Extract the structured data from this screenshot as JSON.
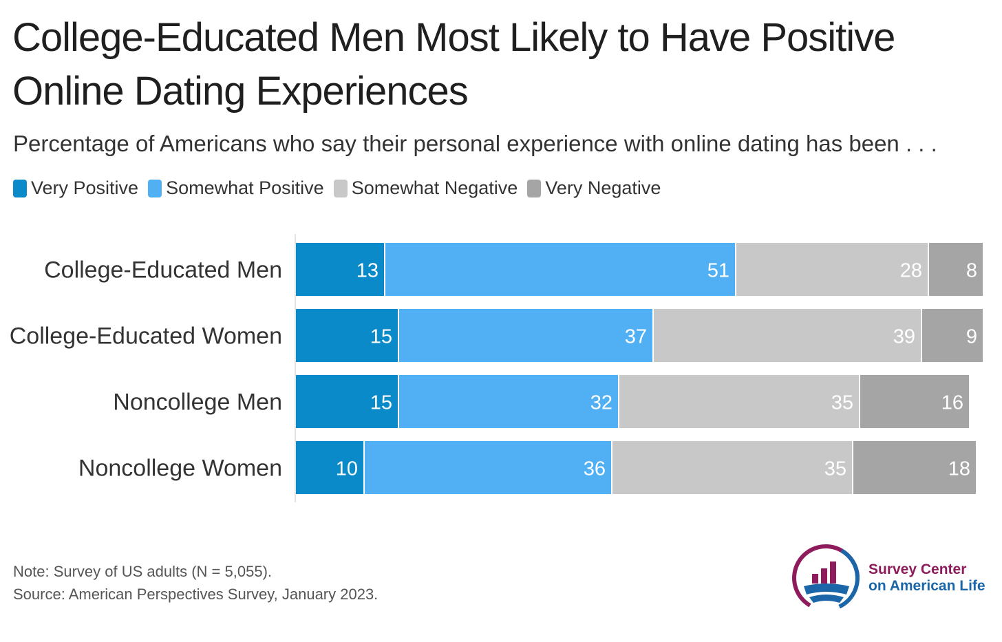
{
  "title": "College-Educated Men Most Likely to Have Positive Online Dating Experiences",
  "subtitle": "Percentage of Americans who say their personal experience with online dating has been . . .",
  "colors": {
    "very_positive": "#0a8ac9",
    "somewhat_positive": "#51b0f4",
    "somewhat_negative": "#c8c8c8",
    "very_negative": "#a5a5a5"
  },
  "chart_data": {
    "type": "bar",
    "orientation": "horizontal-stacked",
    "categories": [
      "College-Educated Men",
      "College-Educated Women",
      "Noncollege Men",
      "Noncollege Women"
    ],
    "series": [
      {
        "name": "Very Positive",
        "values": [
          13,
          15,
          15,
          10
        ]
      },
      {
        "name": "Somewhat Positive",
        "values": [
          51,
          37,
          32,
          36
        ]
      },
      {
        "name": "Somewhat Negative",
        "values": [
          28,
          39,
          35,
          35
        ]
      },
      {
        "name": "Very Negative",
        "values": [
          8,
          9,
          16,
          18
        ]
      }
    ],
    "xlim": [
      0,
      100
    ],
    "legend": "top-left",
    "grid": false
  },
  "notes": {
    "note": "Note: Survey of US adults (N = 5,055).",
    "source": "Source: American Perspectives Survey, January 2023."
  },
  "logo": {
    "line1": "Survey Center",
    "line2": "on American Life"
  }
}
